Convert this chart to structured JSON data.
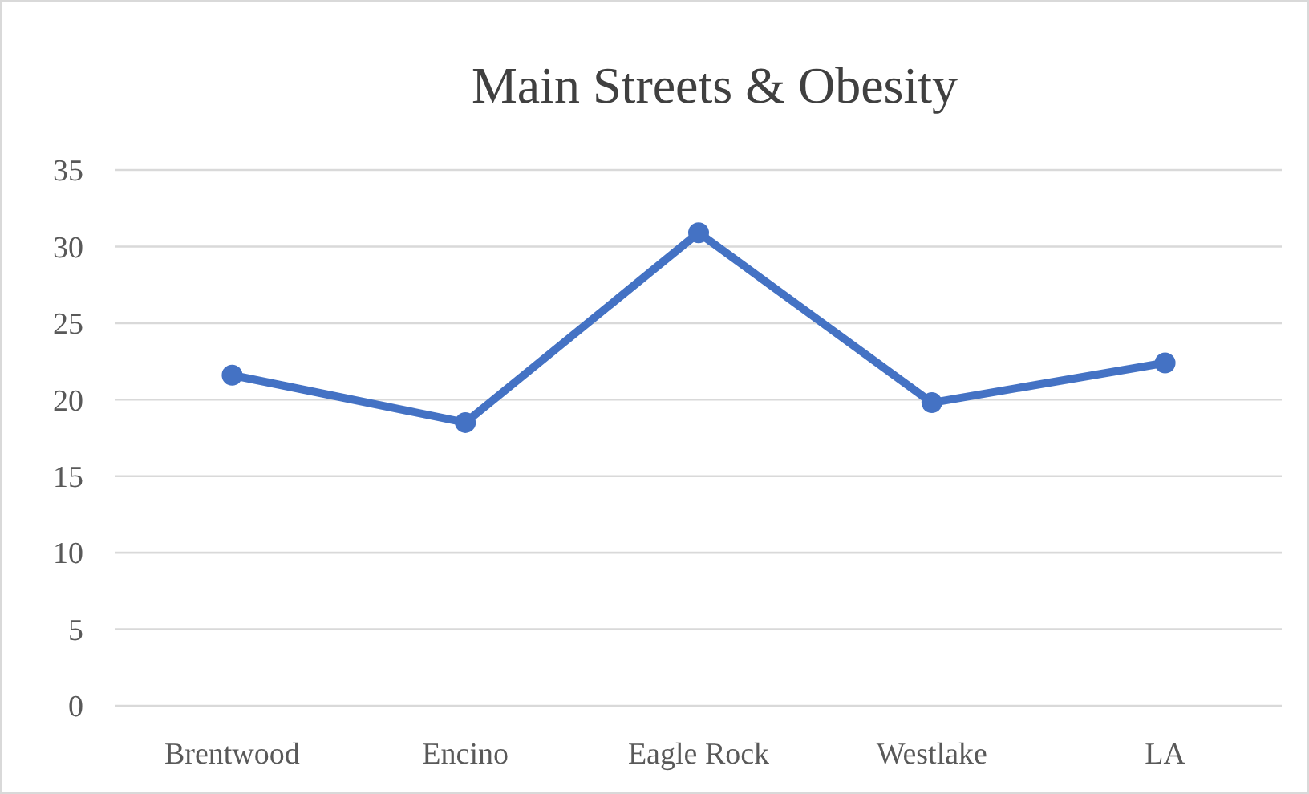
{
  "chart_data": {
    "type": "line",
    "title": "Main Streets & Obesity",
    "categories": [
      "Brentwood",
      "Encino",
      "Eagle Rock",
      "Westlake",
      "LA"
    ],
    "series": [
      {
        "color": "#4472c4",
        "values": [
          21.6,
          18.5,
          30.9,
          19.8,
          22.4
        ]
      }
    ],
    "ylim": [
      0,
      35
    ],
    "yticks": [
      0,
      5,
      10,
      15,
      20,
      25,
      30,
      35
    ],
    "grid": "y",
    "marker": "circle",
    "line_style": "solid"
  }
}
